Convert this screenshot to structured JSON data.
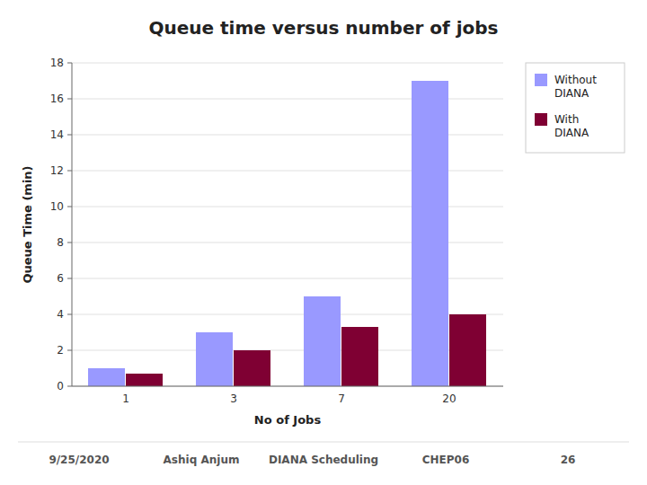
{
  "chart_data": {
    "type": "bar",
    "title": "Queue time versus number of jobs",
    "xlabel": "No of Jobs",
    "ylabel": "Queue Time (min)",
    "categories": [
      "1",
      "3",
      "7",
      "20"
    ],
    "series": [
      {
        "name": "Without\nDIANA",
        "color": "#9999ff",
        "values": [
          1.0,
          3.0,
          5.0,
          17.0
        ]
      },
      {
        "name": "With\nDIANA",
        "color": "#7f0033",
        "values": [
          0.7,
          2.0,
          3.3,
          4.0
        ]
      }
    ],
    "ylim": [
      0,
      18
    ],
    "yticks": [
      0,
      2,
      4,
      6,
      8,
      10,
      12,
      14,
      16,
      18
    ],
    "grid": true,
    "legend": "right",
    "annotations": [
      "9/25/2020",
      "Ashiq Anjum",
      "DIANA Scheduling",
      "CHEP06",
      "26"
    ]
  }
}
